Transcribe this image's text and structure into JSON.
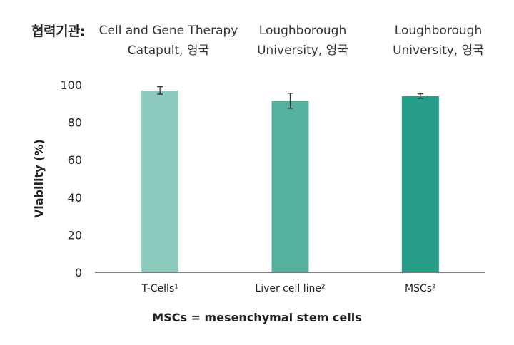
{
  "header": {
    "collaborators_label": "협력기관:",
    "partners": [
      {
        "line1": "Cell and Gene Therapy",
        "line2": "Catapult, 영국"
      },
      {
        "line1": "Loughborough",
        "line2": "University, 영국"
      },
      {
        "line1": "Loughborough",
        "line2": "University, 영국"
      }
    ]
  },
  "chart_data": {
    "type": "bar",
    "categories": [
      "T-Cells¹",
      "Liver cell line²",
      "MSCs³"
    ],
    "values": [
      97,
      91.5,
      94
    ],
    "error": [
      2,
      4,
      1.2
    ],
    "colors": [
      "#8ecbbf",
      "#57b19f",
      "#279c86"
    ],
    "ylabel": "Viability (%)",
    "xlabel": "",
    "ylim": [
      0,
      100
    ],
    "yticks": [
      0,
      20,
      40,
      60,
      80,
      100
    ],
    "grid": false
  },
  "footnote": "MSCs = mesenchymal stem cells"
}
